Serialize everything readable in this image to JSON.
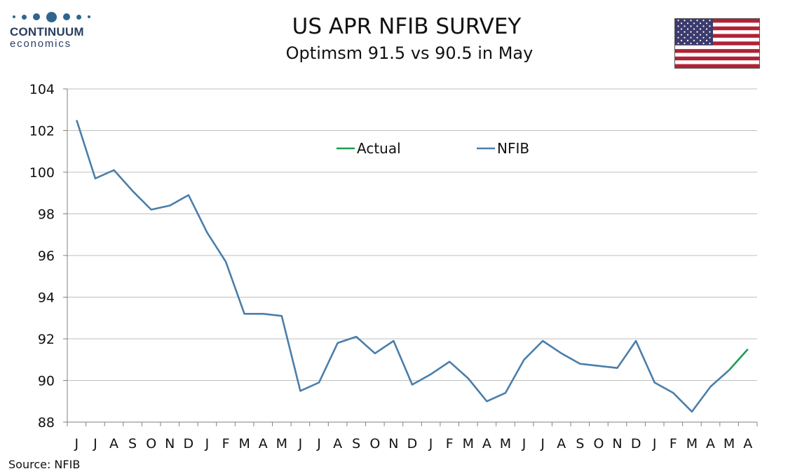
{
  "header": {
    "title": "US APR NFIB SURVEY",
    "subtitle": "Optimsm 91.5 vs 90.5 in May"
  },
  "logo": {
    "name": "CONTINUUM",
    "sub": "economics"
  },
  "source": "Source: NFIB",
  "colors": {
    "nfib": "#4a7eaa",
    "actual": "#1a9e50",
    "grid": "#bfbfbf"
  },
  "chart_data": {
    "type": "line",
    "categories": [
      "J",
      "J",
      "A",
      "S",
      "O",
      "N",
      "D",
      "J",
      "F",
      "M",
      "A",
      "M",
      "J",
      "J",
      "A",
      "S",
      "O",
      "N",
      "D",
      "J",
      "F",
      "M",
      "A",
      "M",
      "J",
      "J",
      "A",
      "S",
      "O",
      "N",
      "D",
      "J",
      "F",
      "M",
      "A",
      "M",
      "A"
    ],
    "series": [
      {
        "name": "NFIB",
        "values": [
          102.5,
          99.7,
          100.1,
          99.1,
          98.2,
          98.4,
          98.9,
          97.1,
          95.7,
          93.2,
          93.2,
          93.1,
          89.5,
          89.9,
          91.8,
          92.1,
          91.3,
          91.9,
          89.8,
          90.3,
          90.9,
          90.1,
          89.0,
          89.4,
          91.0,
          91.9,
          91.3,
          90.8,
          90.7,
          90.6,
          91.9,
          89.9,
          89.4,
          88.5,
          89.7,
          90.5,
          null
        ]
      },
      {
        "name": "Actual",
        "values": [
          null,
          null,
          null,
          null,
          null,
          null,
          null,
          null,
          null,
          null,
          null,
          null,
          null,
          null,
          null,
          null,
          null,
          null,
          null,
          null,
          null,
          null,
          null,
          null,
          null,
          null,
          null,
          null,
          null,
          null,
          null,
          null,
          null,
          null,
          null,
          90.5,
          91.5
        ]
      }
    ],
    "ylim": [
      88,
      104
    ],
    "yticks": [
      "88",
      "90",
      "92",
      "94",
      "96",
      "98",
      "100",
      "102",
      "104"
    ],
    "grid": true,
    "legend_position": "top-center"
  }
}
